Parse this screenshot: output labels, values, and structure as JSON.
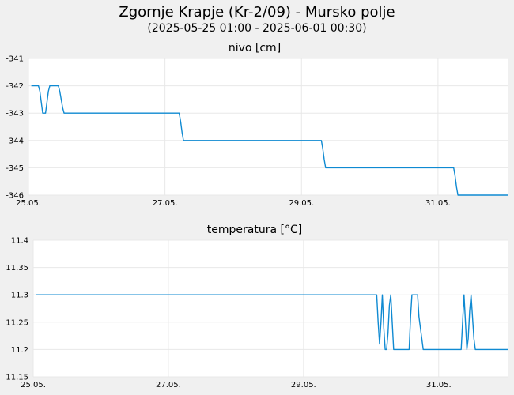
{
  "title": "Zgornje Krapje (Kr-2/09) - Mursko polje",
  "subtitle": "(2025-05-25 01:00 - 2025-06-01 00:30)",
  "colors": {
    "background": "#f0f0f0",
    "plot": "#ffffff",
    "line": "#0f8ad2",
    "grid": "#e8e8e8"
  },
  "chart_data": [
    {
      "type": "line",
      "title": "nivo [cm]",
      "xlabel": "",
      "ylabel": "",
      "grid": true,
      "xlim": [
        "2025-05-25 00:00",
        "2025-06-01 00:30"
      ],
      "ylim": [
        -346,
        -341
      ],
      "xticks": [
        "25.05.",
        "27.05.",
        "29.05.",
        "31.05."
      ],
      "yticks": [
        "-341",
        "-342",
        "-343",
        "-344",
        "-345",
        "-346"
      ],
      "series": [
        {
          "x": [
            "2025-05-25 01:00",
            "2025-05-25 03:30",
            "2025-05-25 04:00",
            "2025-05-25 04:30",
            "2025-05-25 05:00",
            "2025-05-25 06:00",
            "2025-05-25 06:30",
            "2025-05-25 07:00",
            "2025-05-25 07:30",
            "2025-05-25 10:30",
            "2025-05-25 11:00",
            "2025-05-25 11:30",
            "2025-05-25 12:00",
            "2025-05-25 12:30",
            "2025-05-27 05:00",
            "2025-05-27 05:30",
            "2025-05-27 06:00",
            "2025-05-27 06:30",
            "2025-05-29 07:00",
            "2025-05-29 07:30",
            "2025-05-29 08:00",
            "2025-05-29 08:30",
            "2025-05-31 05:30",
            "2025-05-31 06:00",
            "2025-05-31 06:30",
            "2025-05-31 07:00",
            "2025-06-01 00:30"
          ],
          "y": [
            -342,
            -342,
            -342.2,
            -342.6,
            -343,
            -343,
            -342.6,
            -342.2,
            -342,
            -342,
            -342.2,
            -342.5,
            -342.8,
            -343,
            -343,
            -343.3,
            -343.7,
            -344,
            -344,
            -344.3,
            -344.7,
            -345,
            -345,
            -345.3,
            -345.7,
            -346,
            -346
          ]
        }
      ]
    },
    {
      "type": "line",
      "title": "temperatura [°C]",
      "xlabel": "",
      "ylabel": "",
      "grid": true,
      "xlim": [
        "2025-05-25 00:00",
        "2025-06-01 00:30"
      ],
      "ylim": [
        11.15,
        11.4
      ],
      "xticks": [
        "25.05.",
        "27.05.",
        "29.05.",
        "31.05."
      ],
      "yticks": [
        "11.4",
        "11.35",
        "11.3",
        "11.25",
        "11.2",
        "11.15"
      ],
      "series": [
        {
          "x": [
            "2025-05-25 01:00",
            "2025-05-30 02:00",
            "2025-05-30 02:30",
            "2025-05-30 03:00",
            "2025-05-30 03:30",
            "2025-05-30 04:00",
            "2025-05-30 04:30",
            "2025-05-30 05:00",
            "2025-05-30 05:30",
            "2025-05-30 06:00",
            "2025-05-30 06:30",
            "2025-05-30 07:00",
            "2025-05-30 07:30",
            "2025-05-30 08:00",
            "2025-05-30 08:30",
            "2025-05-30 09:00",
            "2025-05-30 09:30",
            "2025-05-30 10:00",
            "2025-05-30 13:30",
            "2025-05-30 14:00",
            "2025-05-30 14:30",
            "2025-05-30 15:00",
            "2025-05-30 15:30",
            "2025-05-30 16:00",
            "2025-05-30 16:30",
            "2025-05-30 17:00",
            "2025-05-30 18:30",
            "2025-05-30 19:00",
            "2025-05-30 19:30",
            "2025-05-30 20:00",
            "2025-05-31 08:00",
            "2025-05-31 08:30",
            "2025-05-31 09:00",
            "2025-05-31 09:30",
            "2025-05-31 10:00",
            "2025-05-31 10:30",
            "2025-05-31 11:00",
            "2025-05-31 11:30",
            "2025-05-31 12:00",
            "2025-05-31 12:30",
            "2025-05-31 13:00",
            "2025-05-31 13:30",
            "2025-05-31 14:00",
            "2025-06-01 00:30"
          ],
          "y": [
            11.3,
            11.3,
            11.25,
            11.21,
            11.25,
            11.3,
            11.24,
            11.2,
            11.2,
            11.23,
            11.28,
            11.3,
            11.25,
            11.2,
            11.2,
            11.2,
            11.2,
            11.2,
            11.2,
            11.26,
            11.3,
            11.3,
            11.3,
            11.3,
            11.3,
            11.26,
            11.2,
            11.2,
            11.2,
            11.2,
            11.2,
            11.25,
            11.3,
            11.25,
            11.2,
            11.22,
            11.27,
            11.3,
            11.26,
            11.22,
            11.2,
            11.2,
            11.2,
            11.2
          ]
        }
      ]
    }
  ]
}
